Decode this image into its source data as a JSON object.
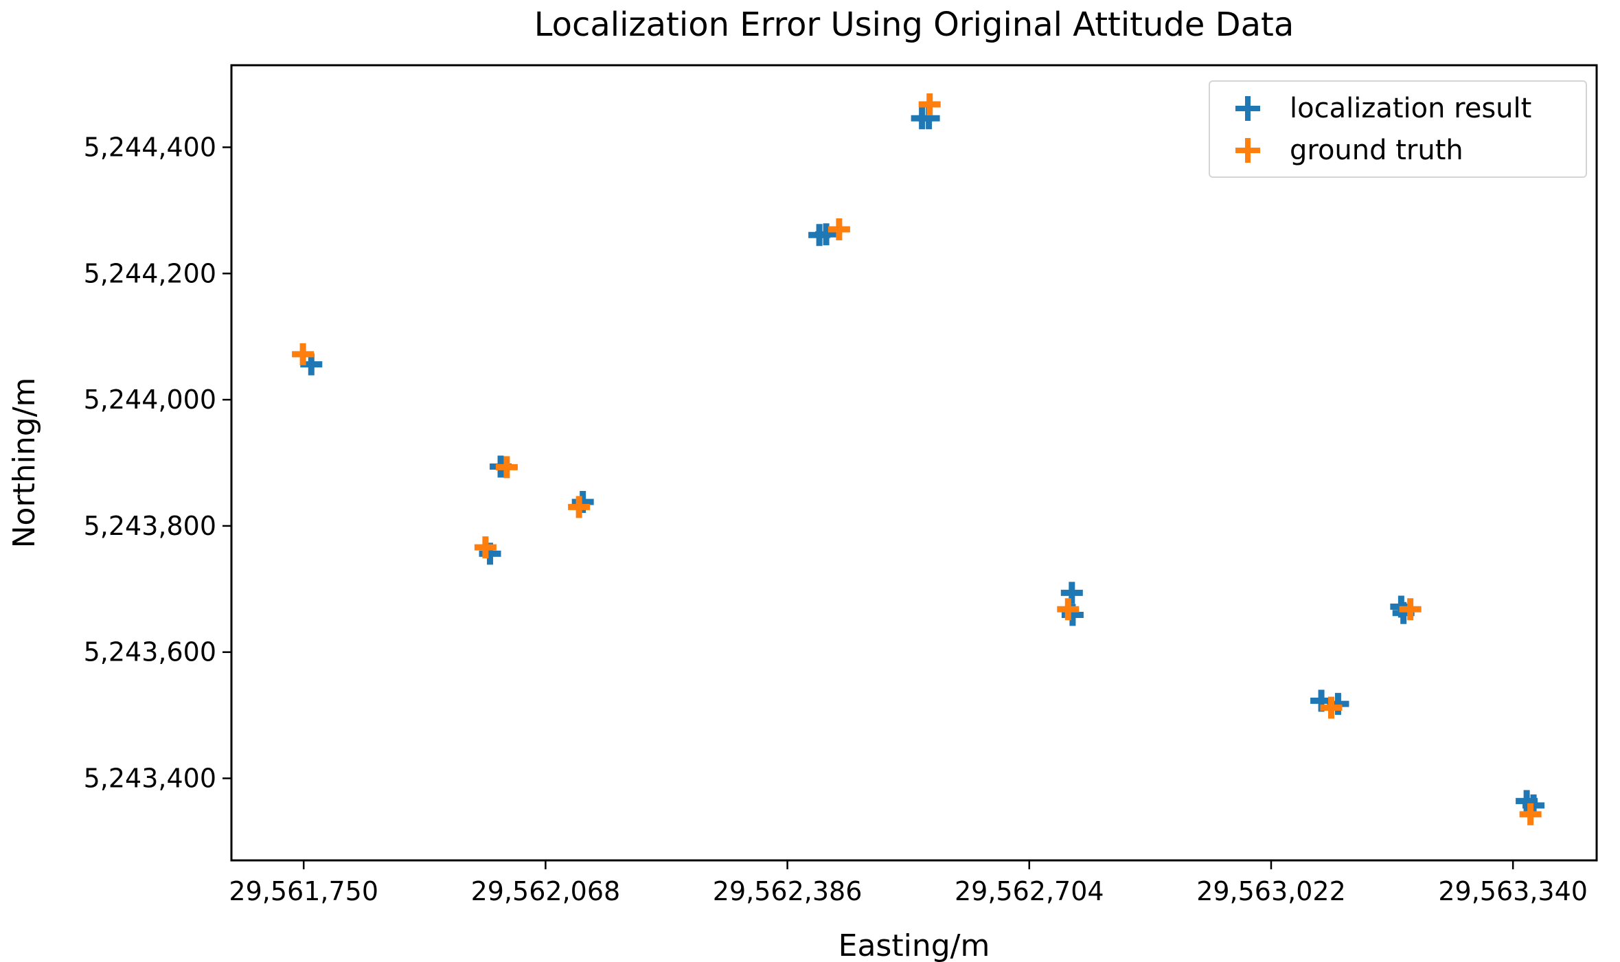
{
  "figure": {
    "background": "#ffffff",
    "spine_color": "#000000",
    "text_color": "#000000"
  },
  "legend": {
    "position": "upper right",
    "items": [
      {
        "label": "localization result",
        "color": "#1f77b4",
        "marker": "plus"
      },
      {
        "label": "ground truth",
        "color": "#ff7f0e",
        "marker": "plus"
      }
    ]
  },
  "chart_data": {
    "type": "scatter",
    "title": "Localization Error Using Original Attitude Data",
    "xlabel": "Easting/m",
    "ylabel": "Northing/m",
    "grid": false,
    "legend_position": "upper right",
    "xlim": [
      29561655,
      29563450
    ],
    "ylim": [
      5243270,
      5244530
    ],
    "xticks": {
      "values": [
        29561750,
        29562068,
        29562386,
        29562704,
        29563022,
        29563340
      ],
      "labels": [
        "29,561,750",
        "29,562,068",
        "29,562,386",
        "29,562,704",
        "29,563,022",
        "29,563,340"
      ]
    },
    "yticks": {
      "values": [
        5243400,
        5243600,
        5243800,
        5244000,
        5244200,
        5244400
      ],
      "labels": [
        "5,243,400",
        "5,243,600",
        "5,243,800",
        "5,244,000",
        "5,244,200",
        "5,244,400"
      ]
    },
    "series": [
      {
        "name": "localization result",
        "color": "#1f77b4",
        "marker": "+",
        "points": [
          [
            29561760,
            5244056
          ],
          [
            29562009,
            5243894
          ],
          [
            29562117,
            5243838
          ],
          [
            29561995,
            5243756
          ],
          [
            29562428,
            5244261
          ],
          [
            29562437,
            5244262
          ],
          [
            29562563,
            5244446
          ],
          [
            29562572,
            5244446
          ],
          [
            29562760,
            5243694
          ],
          [
            29562761,
            5243659
          ],
          [
            29563088,
            5243523
          ],
          [
            29563110,
            5243518
          ],
          [
            29563193,
            5243672
          ],
          [
            29563196,
            5243662
          ],
          [
            29563358,
            5243364
          ],
          [
            29563367,
            5243357
          ]
        ]
      },
      {
        "name": "ground truth",
        "color": "#ff7f0e",
        "marker": "+",
        "points": [
          [
            29561749,
            5244072
          ],
          [
            29562017,
            5243893
          ],
          [
            29562112,
            5243830
          ],
          [
            29561989,
            5243766
          ],
          [
            29562454,
            5244270
          ],
          [
            29562573,
            5244468
          ],
          [
            29562755,
            5243668
          ],
          [
            29563101,
            5243512
          ],
          [
            29563205,
            5243668
          ],
          [
            29563363,
            5243343
          ]
        ]
      }
    ]
  }
}
